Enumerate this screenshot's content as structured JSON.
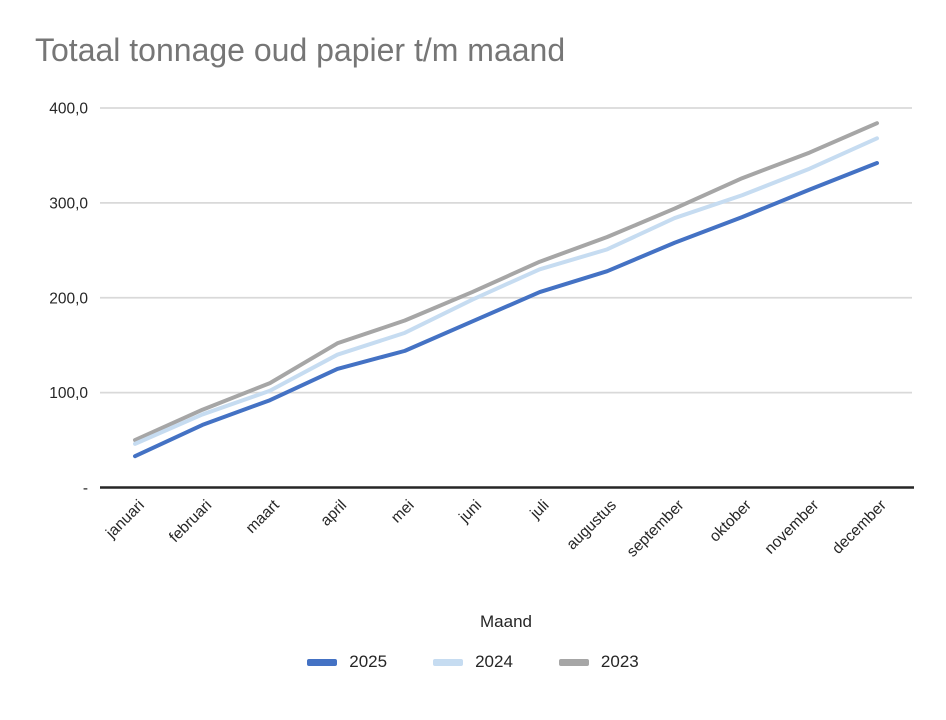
{
  "title": "Totaal tonnage oud papier t/m maand",
  "colors": {
    "title": "#767676",
    "axis": "#262626",
    "gridline": "#D9D9D9",
    "tick": "#262626",
    "series_2025": "#4472C4",
    "series_2024": "#C6DCF1",
    "series_2023": "#A6A6A6"
  },
  "chart_data": {
    "type": "line",
    "title": "Totaal tonnage oud papier t/m maand",
    "xlabel": "Maand",
    "ylabel": "",
    "ylim": [
      0,
      400
    ],
    "grid": "horizontal",
    "legend_position": "bottom",
    "yticks": {
      "values": [
        0,
        100,
        200,
        300,
        400
      ],
      "labels": [
        "-",
        "100,0",
        "200,0",
        "300,0",
        "400,0"
      ]
    },
    "categories": [
      "januari",
      "februari",
      "maart",
      "april",
      "mei",
      "juni",
      "juli",
      "augustus",
      "september",
      "oktober",
      "november",
      "december"
    ],
    "series": [
      {
        "name": "2025",
        "color": "#4472C4",
        "values": [
          33,
          66,
          92,
          125,
          144,
          175,
          206,
          228,
          258,
          285,
          314,
          342
        ]
      },
      {
        "name": "2024",
        "color": "#C6DCF1",
        "values": [
          46,
          77,
          102,
          140,
          163,
          198,
          230,
          251,
          284,
          308,
          336,
          368
        ]
      },
      {
        "name": "2023",
        "color": "#A6A6A6",
        "values": [
          50,
          82,
          110,
          152,
          176,
          206,
          238,
          264,
          294,
          326,
          353,
          384
        ]
      }
    ]
  }
}
